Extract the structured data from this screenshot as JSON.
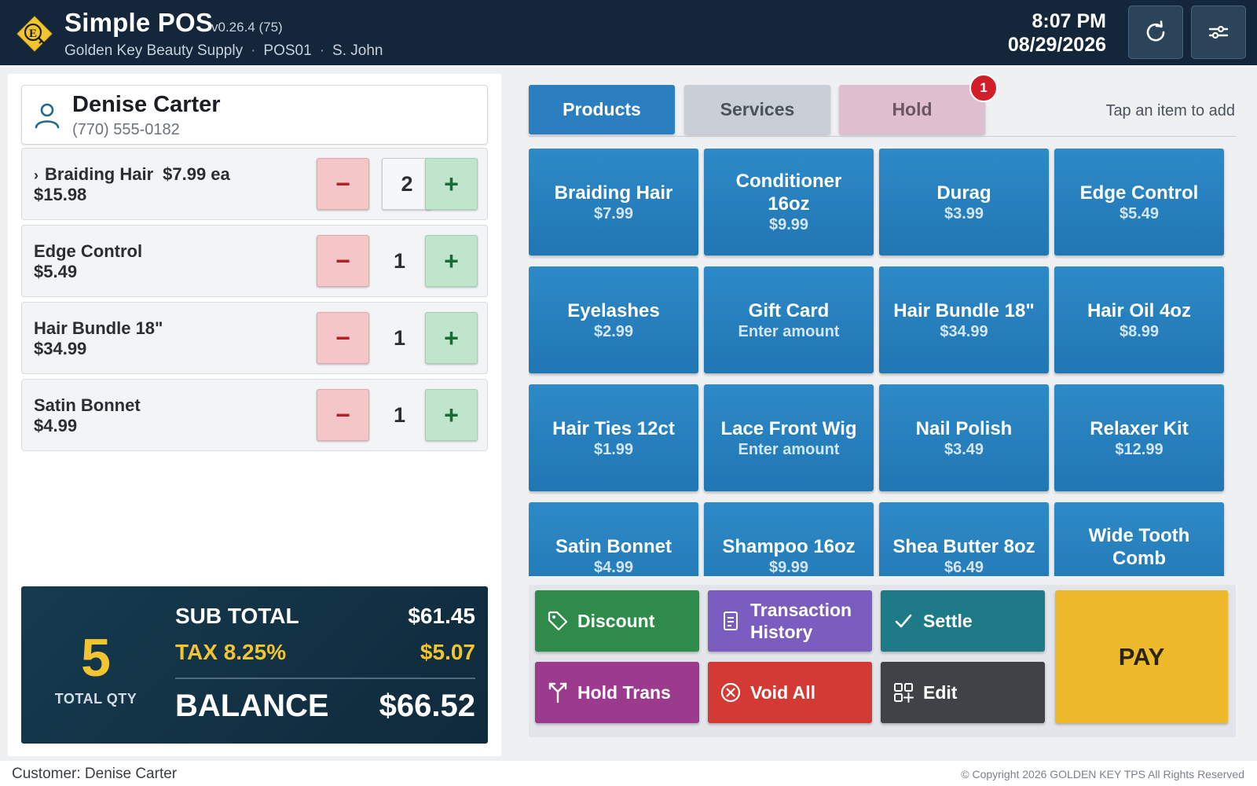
{
  "header": {
    "app_title": "Simple POS",
    "version": "v0.26.4 (75)",
    "store": "Golden Key Beauty Supply",
    "register": "POS01",
    "cashier": "S. John",
    "time": "8:07 PM",
    "date": "08/29/2026",
    "logo_icon": "golden-key-logo-icon",
    "refresh_icon": "refresh-icon",
    "settings_icon": "sliders-icon"
  },
  "customer": {
    "name": "Denise Carter",
    "phone": "(770) 555-0182",
    "icon": "person-icon"
  },
  "cart": {
    "items": [
      {
        "name": "Braiding Hair",
        "unit_price": "$7.99 ea",
        "line_total": "$15.98",
        "qty": "2",
        "expanded_marker": "›"
      },
      {
        "name": "Edge Control",
        "line_total": "$5.49",
        "qty": "1"
      },
      {
        "name": "Hair Bundle 18\"",
        "line_total": "$34.99",
        "qty": "1"
      },
      {
        "name": "Satin Bonnet",
        "line_total": "$4.99",
        "qty": "1"
      }
    ],
    "minus_label": "−",
    "plus_label": "+"
  },
  "totals": {
    "total_qty": "5",
    "total_qty_label": "TOTAL QTY",
    "subtotal_label": "SUB TOTAL",
    "subtotal": "$61.45",
    "tax_label": "TAX 8.25%",
    "tax": "$5.07",
    "balance_label": "BALANCE",
    "balance": "$66.52"
  },
  "tabs": {
    "products": "Products",
    "services": "Services",
    "hold": "Hold",
    "hold_badge": "1",
    "hint": "Tap an item to add"
  },
  "products": [
    {
      "name": "Braiding Hair",
      "price": "$7.99"
    },
    {
      "name": "Conditioner 16oz",
      "price": "$9.99"
    },
    {
      "name": "Durag",
      "price": "$3.99"
    },
    {
      "name": "Edge Control",
      "price": "$5.49"
    },
    {
      "name": "Eyelashes",
      "price": "$2.99"
    },
    {
      "name": "Gift Card",
      "price": "Enter amount"
    },
    {
      "name": "Hair Bundle 18\"",
      "price": "$34.99"
    },
    {
      "name": "Hair Oil 4oz",
      "price": "$8.99"
    },
    {
      "name": "Hair Ties 12ct",
      "price": "$1.99"
    },
    {
      "name": "Lace Front Wig",
      "price": "Enter amount"
    },
    {
      "name": "Nail Polish",
      "price": "$3.49"
    },
    {
      "name": "Relaxer Kit",
      "price": "$12.99"
    },
    {
      "name": "Satin Bonnet",
      "price": "$4.99"
    },
    {
      "name": "Shampoo 16oz",
      "price": "$9.99"
    },
    {
      "name": "Shea Butter 8oz",
      "price": "$6.49"
    },
    {
      "name": "Wide Tooth Comb",
      "price": ""
    }
  ],
  "actions": {
    "discount": "Discount",
    "history_line1": "Transaction",
    "history_line2": "History",
    "settle": "Settle",
    "hold_trans": "Hold Trans",
    "void_all": "Void All",
    "edit": "Edit",
    "pay": "PAY"
  },
  "footer": {
    "customer": "Customer: Denise Carter",
    "copyright": "© Copyright 2026 GOLDEN KEY TPS All Rights Reserved"
  },
  "colors": {
    "header_bg": "#14273a",
    "product_tile": "#2176b4",
    "pay": "#eeba2c",
    "accent_yellow": "#f2c530"
  }
}
